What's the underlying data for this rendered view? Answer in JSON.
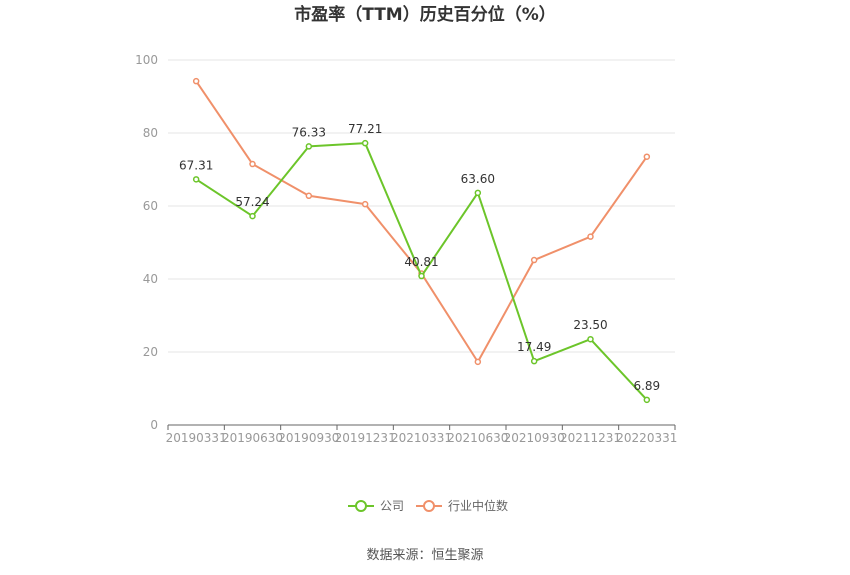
{
  "chart_data": {
    "type": "line",
    "title": "市盈率（TTM）历史百分位（%）",
    "categories": [
      "20190331",
      "20190630",
      "20190930",
      "20191231",
      "20210331",
      "20210630",
      "20210930",
      "20211231",
      "20220331"
    ],
    "ylim": [
      0,
      100
    ],
    "yticks": [
      0,
      20,
      40,
      60,
      80,
      100
    ],
    "grid": true,
    "legend_placement": "bottom",
    "series": [
      {
        "name": "公司",
        "color": "#6cc52a",
        "values": [
          67.31,
          57.24,
          76.33,
          77.21,
          40.81,
          63.6,
          17.49,
          23.5,
          6.89
        ],
        "labels": [
          "67.31",
          "57.24",
          "76.33",
          "77.21",
          "40.81",
          "63.60",
          "17.49",
          "23.50",
          "6.89"
        ]
      },
      {
        "name": "行业中位数",
        "color": "#f0906a",
        "values": [
          94.2,
          71.5,
          62.8,
          60.5,
          41.5,
          17.3,
          45.2,
          51.6,
          73.5
        ]
      }
    ]
  },
  "source_text": "数据来源：恒生聚源"
}
